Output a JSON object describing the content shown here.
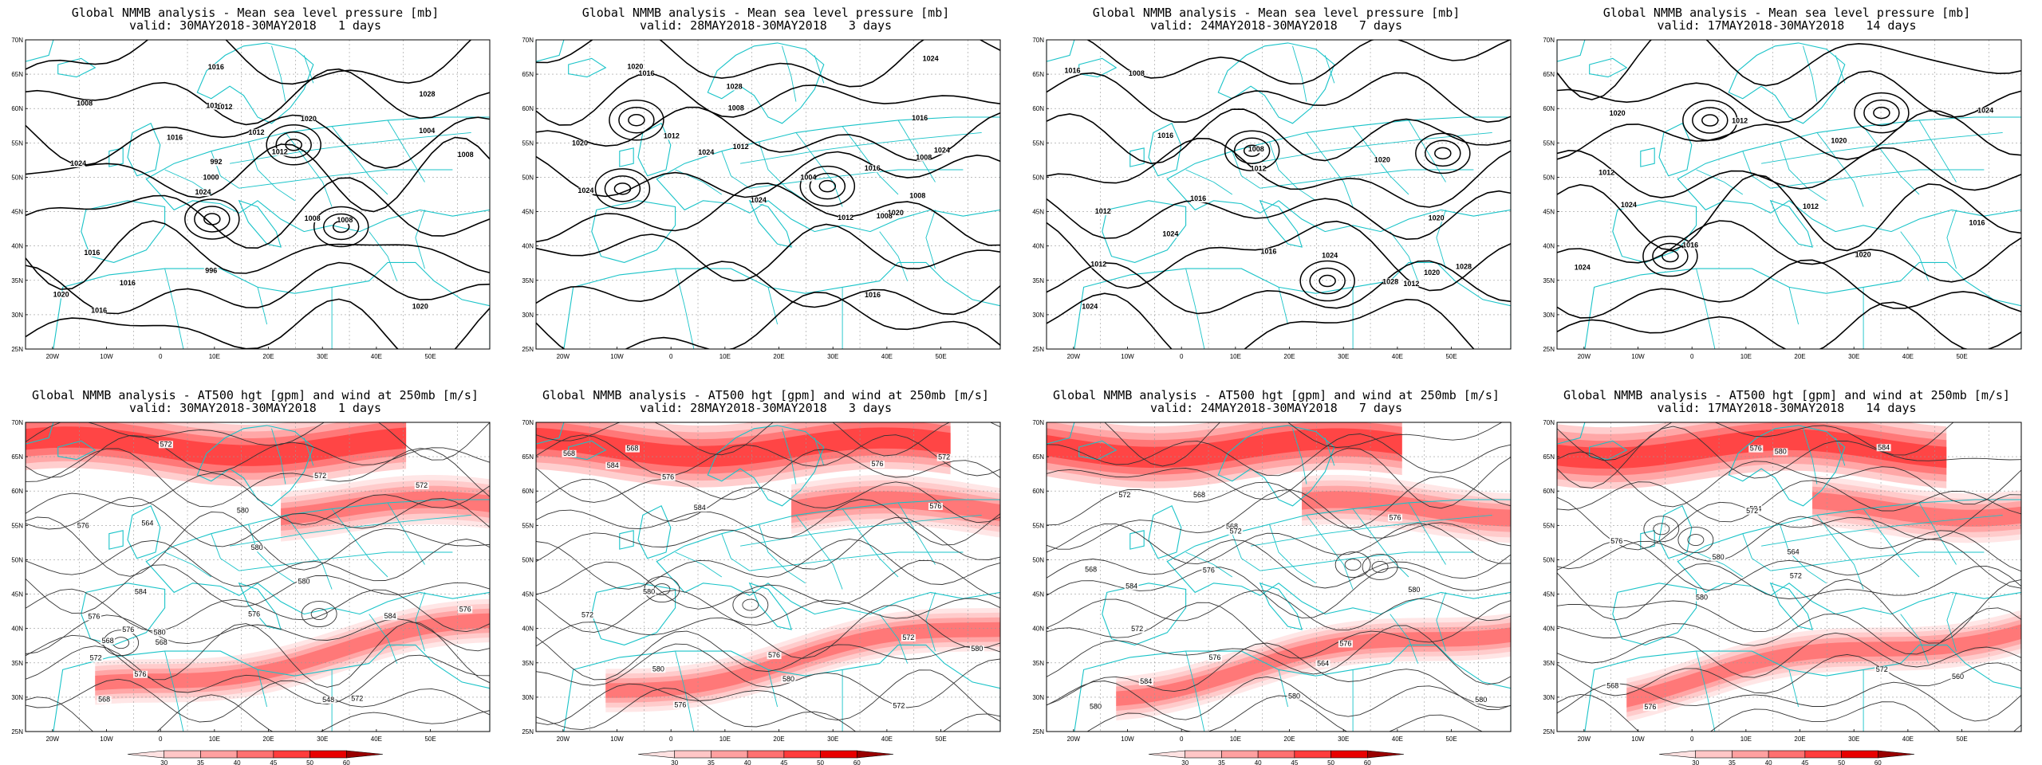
{
  "panels": [
    {
      "row": "mslp",
      "title": "Global NMMB analysis - Mean sea level pressure [mb]",
      "valid": "valid: 30MAY2018-30MAY2018   1 days",
      "labels": [
        "1020",
        "1024",
        "1028",
        "1024",
        "1020",
        "1016",
        "1016",
        "1012",
        "1016",
        "1016",
        "1020",
        "1016",
        "1012",
        "1012",
        "1008",
        "1008",
        "1016",
        "1008",
        "1008",
        "1004",
        "1000",
        "996",
        "992"
      ]
    },
    {
      "row": "mslp",
      "title": "Global NMMB analysis - Mean sea level pressure [mb]",
      "valid": "valid: 28MAY2018-30MAY2018   3 days",
      "labels": [
        "1024",
        "1028",
        "1024",
        "1020",
        "1016",
        "1024",
        "1024",
        "1020",
        "1016",
        "1024",
        "1020",
        "1016",
        "1016",
        "1012",
        "1012",
        "1012",
        "1008",
        "1008",
        "1008",
        "1004",
        "1008"
      ]
    },
    {
      "row": "mslp",
      "title": "Global NMMB analysis - Mean sea level pressure [mb]",
      "valid": "valid: 24MAY2018-30MAY2018   7 days",
      "labels": [
        "1028",
        "1028",
        "1024",
        "1024",
        "1020",
        "1016",
        "1016",
        "1020",
        "1024",
        "1016",
        "1012",
        "1016",
        "1012",
        "1012",
        "1008",
        "1012",
        "1008",
        "1020"
      ]
    },
    {
      "row": "mslp",
      "title": "Global NMMB analysis - Mean sea level pressure [mb]",
      "valid": "valid: 17MAY2018-30MAY2018   14 days",
      "labels": [
        "1024",
        "1024",
        "1020",
        "1020",
        "1024",
        "1016",
        "1016",
        "1012",
        "1012",
        "1012",
        "1020"
      ]
    },
    {
      "row": "z500",
      "title": "Global NMMB analysis - AT500 hgt [gpm] and wind at 250mb [m/s]",
      "valid": "valid: 30MAY2018-30MAY2018   1 days",
      "labels": [
        "576",
        "580",
        "576",
        "572",
        "568",
        "572",
        "576",
        "564",
        "568",
        "572",
        "576",
        "568",
        "572",
        "576",
        "580",
        "584",
        "576",
        "580",
        "584",
        "548",
        "580",
        "572"
      ]
    },
    {
      "row": "z500",
      "title": "Global NMMB analysis - AT500 hgt [gpm] and wind at 250mb [m/s]",
      "valid": "valid: 28MAY2018-30MAY2018   3 days",
      "labels": [
        "568",
        "572",
        "576",
        "580",
        "576",
        "572",
        "568",
        "572",
        "576",
        "580",
        "584",
        "576",
        "572",
        "580",
        "584",
        "580",
        "576"
      ]
    },
    {
      "row": "z500",
      "title": "Global NMMB analysis - AT500 hgt [gpm] and wind at 250mb [m/s]",
      "valid": "valid: 24MAY2018-30MAY2018   7 days",
      "labels": [
        "568",
        "572",
        "576",
        "580",
        "568",
        "576",
        "572",
        "564",
        "576",
        "580",
        "584",
        "568",
        "572",
        "576",
        "580",
        "584",
        "580"
      ]
    },
    {
      "row": "z500",
      "title": "Global NMMB analysis - AT500 hgt [gpm] and wind at 250mb [m/s]",
      "valid": "valid: 17MAY2018-30MAY2018   14 days",
      "labels": [
        "568",
        "564",
        "560",
        "576",
        "572",
        "572",
        "576",
        "580",
        "584",
        "572",
        "576",
        "580",
        "584",
        "580"
      ]
    }
  ],
  "axes": {
    "lon_labels": [
      "20W",
      "10W",
      "0",
      "10E",
      "20E",
      "30E",
      "40E",
      "50E"
    ],
    "lat_labels": [
      "70N",
      "65N",
      "60N",
      "55N",
      "50N",
      "45N",
      "40N",
      "35N",
      "30N",
      "25N"
    ]
  },
  "colorbar": {
    "labels": [
      "30",
      "35",
      "40",
      "45",
      "50",
      "60"
    ],
    "colors": [
      "#ffe2e2",
      "#ffc6c6",
      "#ffa0a0",
      "#ff7070",
      "#ff3c3c",
      "#e80000",
      "#990000"
    ]
  }
}
